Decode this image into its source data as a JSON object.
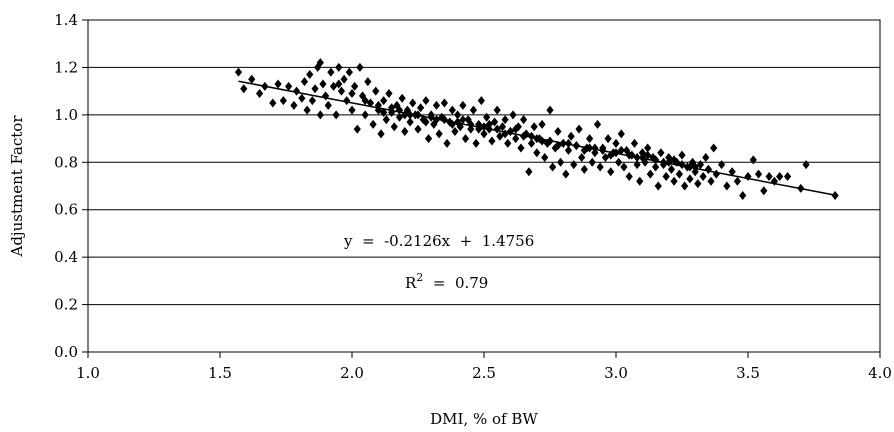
{
  "chart_data": {
    "type": "scatter",
    "xlabel": "DMI, % of BW",
    "ylabel": "Adjustment Factor",
    "xlim": [
      1.0,
      4.0
    ],
    "ylim": [
      0.0,
      1.4
    ],
    "x_ticks": [
      "1.0",
      "1.5",
      "2.0",
      "2.5",
      "3.0",
      "3.5",
      "4.0"
    ],
    "y_ticks": [
      "0.0",
      "0.2",
      "0.4",
      "0.6",
      "0.8",
      "1.0",
      "1.2",
      "1.4"
    ],
    "grid": "horizontal",
    "marker": "diamond",
    "marker_color": "#000000",
    "trendline": {
      "slope": -0.2126,
      "intercept": 1.4756,
      "x_range": [
        1.57,
        3.83
      ]
    },
    "annotations": {
      "equation": "y  =  -0.2126x  +  1.4756",
      "r2_prefix": "R",
      "r2_sup": "2",
      "r2_value": "  =  0.79"
    },
    "points": [
      [
        1.57,
        1.18
      ],
      [
        1.59,
        1.11
      ],
      [
        1.62,
        1.15
      ],
      [
        1.65,
        1.09
      ],
      [
        1.67,
        1.12
      ],
      [
        1.7,
        1.05
      ],
      [
        1.72,
        1.13
      ],
      [
        1.74,
        1.06
      ],
      [
        1.76,
        1.12
      ],
      [
        1.78,
        1.04
      ],
      [
        1.79,
        1.1
      ],
      [
        1.81,
        1.07
      ],
      [
        1.82,
        1.14
      ],
      [
        1.83,
        1.02
      ],
      [
        1.84,
        1.17
      ],
      [
        1.85,
        1.06
      ],
      [
        1.86,
        1.11
      ],
      [
        1.87,
        1.2
      ],
      [
        1.88,
        1.22
      ],
      [
        1.88,
        1.0
      ],
      [
        1.89,
        1.13
      ],
      [
        1.9,
        1.08
      ],
      [
        1.91,
        1.04
      ],
      [
        1.92,
        1.18
      ],
      [
        1.93,
        1.12
      ],
      [
        1.94,
        1.0
      ],
      [
        1.95,
        1.2
      ],
      [
        1.96,
        1.1
      ],
      [
        1.97,
        1.15
      ],
      [
        1.98,
        1.06
      ],
      [
        1.99,
        1.18
      ],
      [
        2.0,
        1.02
      ],
      [
        2.01,
        1.12
      ],
      [
        2.02,
        0.94
      ],
      [
        2.03,
        1.2
      ],
      [
        2.04,
        1.08
      ],
      [
        2.05,
        1.0
      ],
      [
        2.06,
        1.14
      ],
      [
        2.07,
        1.05
      ],
      [
        2.08,
        0.96
      ],
      [
        2.09,
        1.1
      ],
      [
        2.1,
        1.02
      ],
      [
        2.11,
        0.92
      ],
      [
        2.12,
        1.06
      ],
      [
        2.13,
        0.98
      ],
      [
        2.14,
        1.09
      ],
      [
        2.15,
        1.01
      ],
      [
        2.16,
        0.95
      ],
      [
        2.17,
        1.04
      ],
      [
        2.18,
        0.99
      ],
      [
        2.19,
        1.07
      ],
      [
        2.2,
        0.93
      ],
      [
        2.21,
        1.02
      ],
      [
        2.22,
        0.97
      ],
      [
        2.23,
        1.05
      ],
      [
        2.24,
        1.0
      ],
      [
        2.25,
        0.94
      ],
      [
        2.26,
        1.03
      ],
      [
        2.27,
        0.98
      ],
      [
        2.28,
        1.06
      ],
      [
        2.29,
        0.9
      ],
      [
        2.3,
        1.0
      ],
      [
        2.31,
        0.96
      ],
      [
        2.32,
        1.04
      ],
      [
        2.33,
        0.92
      ],
      [
        2.34,
        0.99
      ],
      [
        2.35,
        1.05
      ],
      [
        2.36,
        0.88
      ],
      [
        2.37,
        0.97
      ],
      [
        2.38,
        1.02
      ],
      [
        2.39,
        0.93
      ],
      [
        2.4,
        1.0
      ],
      [
        2.41,
        0.95
      ],
      [
        2.42,
        1.04
      ],
      [
        2.43,
        0.9
      ],
      [
        2.44,
        0.98
      ],
      [
        2.45,
        0.94
      ],
      [
        2.46,
        1.02
      ],
      [
        2.47,
        0.88
      ],
      [
        2.48,
        0.96
      ],
      [
        2.49,
        1.06
      ],
      [
        2.5,
        0.92
      ],
      [
        2.51,
        0.99
      ],
      [
        2.52,
        0.94
      ],
      [
        2.53,
        0.89
      ],
      [
        2.54,
        0.97
      ],
      [
        2.55,
        1.02
      ],
      [
        2.56,
        0.91
      ],
      [
        2.57,
        0.95
      ],
      [
        2.58,
        0.98
      ],
      [
        2.59,
        0.88
      ],
      [
        2.6,
        0.93
      ],
      [
        2.61,
        1.0
      ],
      [
        2.62,
        0.9
      ],
      [
        2.63,
        0.95
      ],
      [
        2.64,
        0.86
      ],
      [
        2.65,
        0.98
      ],
      [
        2.66,
        0.92
      ],
      [
        2.67,
        0.76
      ],
      [
        2.68,
        0.88
      ],
      [
        2.69,
        0.95
      ],
      [
        2.7,
        0.84
      ],
      [
        2.71,
        0.9
      ],
      [
        2.72,
        0.96
      ],
      [
        2.73,
        0.82
      ],
      [
        2.74,
        0.88
      ],
      [
        2.75,
        1.02
      ],
      [
        2.76,
        0.78
      ],
      [
        2.77,
        0.86
      ],
      [
        2.78,
        0.93
      ],
      [
        2.79,
        0.8
      ],
      [
        2.8,
        0.88
      ],
      [
        2.81,
        0.75
      ],
      [
        2.82,
        0.85
      ],
      [
        2.83,
        0.91
      ],
      [
        2.84,
        0.79
      ],
      [
        2.85,
        0.87
      ],
      [
        2.86,
        0.94
      ],
      [
        2.87,
        0.82
      ],
      [
        2.88,
        0.77
      ],
      [
        2.89,
        0.86
      ],
      [
        2.9,
        0.9
      ],
      [
        2.91,
        0.8
      ],
      [
        2.92,
        0.84
      ],
      [
        2.93,
        0.96
      ],
      [
        2.94,
        0.78
      ],
      [
        2.95,
        0.86
      ],
      [
        2.96,
        0.82
      ],
      [
        2.97,
        0.9
      ],
      [
        2.98,
        0.76
      ],
      [
        2.99,
        0.84
      ],
      [
        3.0,
        0.88
      ],
      [
        3.01,
        0.8
      ],
      [
        3.02,
        0.92
      ],
      [
        3.03,
        0.78
      ],
      [
        3.04,
        0.85
      ],
      [
        3.05,
        0.74
      ],
      [
        3.06,
        0.83
      ],
      [
        3.07,
        0.88
      ],
      [
        3.08,
        0.79
      ],
      [
        3.09,
        0.72
      ],
      [
        3.1,
        0.84
      ],
      [
        3.11,
        0.8
      ],
      [
        3.12,
        0.86
      ],
      [
        3.13,
        0.75
      ],
      [
        3.14,
        0.82
      ],
      [
        3.15,
        0.78
      ],
      [
        3.16,
        0.7
      ],
      [
        3.17,
        0.84
      ],
      [
        3.18,
        0.79
      ],
      [
        3.19,
        0.74
      ],
      [
        3.2,
        0.82
      ],
      [
        3.21,
        0.77
      ],
      [
        3.22,
        0.72
      ],
      [
        3.23,
        0.8
      ],
      [
        3.24,
        0.75
      ],
      [
        3.25,
        0.83
      ],
      [
        3.26,
        0.7
      ],
      [
        3.27,
        0.78
      ],
      [
        3.28,
        0.73
      ],
      [
        3.29,
        0.8
      ],
      [
        3.3,
        0.76
      ],
      [
        3.31,
        0.71
      ],
      [
        3.32,
        0.79
      ],
      [
        3.33,
        0.74
      ],
      [
        3.34,
        0.82
      ],
      [
        3.35,
        0.77
      ],
      [
        3.36,
        0.72
      ],
      [
        3.37,
        0.86
      ],
      [
        3.38,
        0.75
      ],
      [
        3.4,
        0.79
      ],
      [
        3.42,
        0.7
      ],
      [
        3.44,
        0.76
      ],
      [
        3.46,
        0.72
      ],
      [
        3.48,
        0.66
      ],
      [
        3.5,
        0.74
      ],
      [
        3.52,
        0.81
      ],
      [
        3.54,
        0.75
      ],
      [
        3.56,
        0.68
      ],
      [
        3.58,
        0.74
      ],
      [
        3.6,
        0.72
      ],
      [
        3.62,
        0.74
      ],
      [
        3.65,
        0.74
      ],
      [
        3.7,
        0.69
      ],
      [
        3.72,
        0.79
      ],
      [
        3.83,
        0.66
      ],
      [
        1.95,
        1.13
      ],
      [
        2.0,
        1.09
      ],
      [
        2.05,
        1.06
      ],
      [
        2.1,
        1.04
      ],
      [
        2.15,
        1.03
      ],
      [
        2.2,
        1.0
      ],
      [
        2.25,
        1.0
      ],
      [
        2.3,
        0.99
      ],
      [
        2.35,
        0.98
      ],
      [
        2.4,
        0.97
      ],
      [
        2.45,
        0.96
      ],
      [
        2.5,
        0.95
      ],
      [
        2.55,
        0.94
      ],
      [
        2.6,
        0.93
      ],
      [
        2.65,
        0.91
      ],
      [
        2.7,
        0.9
      ],
      [
        2.75,
        0.89
      ],
      [
        2.8,
        0.88
      ],
      [
        2.85,
        0.87
      ],
      [
        2.9,
        0.86
      ],
      [
        2.95,
        0.85
      ],
      [
        3.0,
        0.84
      ],
      [
        3.05,
        0.83
      ],
      [
        3.1,
        0.82
      ],
      [
        3.15,
        0.81
      ],
      [
        3.2,
        0.8
      ],
      [
        3.25,
        0.79
      ],
      [
        3.3,
        0.78
      ],
      [
        3.35,
        0.77
      ],
      [
        2.12,
        1.01
      ],
      [
        2.18,
        1.02
      ],
      [
        2.22,
        1.0
      ],
      [
        2.28,
        0.97
      ],
      [
        2.32,
        0.98
      ],
      [
        2.38,
        0.96
      ],
      [
        2.42,
        0.98
      ],
      [
        2.48,
        0.94
      ],
      [
        2.52,
        0.96
      ],
      [
        2.58,
        0.92
      ],
      [
        2.62,
        0.94
      ],
      [
        2.68,
        0.91
      ],
      [
        2.72,
        0.89
      ],
      [
        2.78,
        0.87
      ],
      [
        2.82,
        0.88
      ],
      [
        2.88,
        0.85
      ],
      [
        2.92,
        0.86
      ],
      [
        2.98,
        0.83
      ],
      [
        3.02,
        0.85
      ],
      [
        3.08,
        0.82
      ],
      [
        3.12,
        0.83
      ],
      [
        3.18,
        0.8
      ],
      [
        3.22,
        0.81
      ],
      [
        3.28,
        0.78
      ]
    ]
  }
}
